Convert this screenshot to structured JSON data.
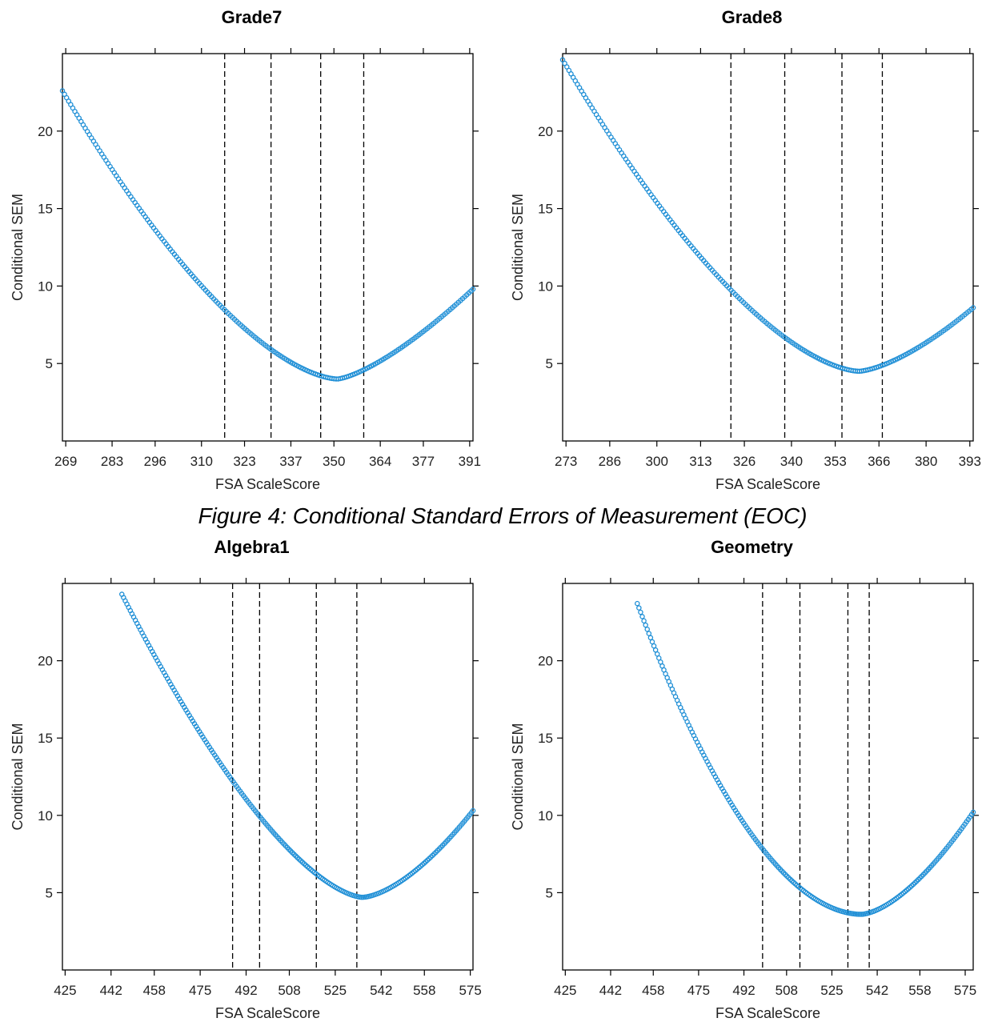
{
  "caption": "Figure 4: Conditional Standard Errors of Measurement (EOC)",
  "colors": {
    "points": "#1f8fd6",
    "cut_lines": "#000000"
  },
  "chart_data": [
    {
      "type": "scatter",
      "title": "Grade7",
      "xlabel": "FSA ScaleScore",
      "ylabel": "Conditional SEM",
      "xlim": [
        268,
        392
      ],
      "ylim": [
        0,
        25
      ],
      "x_ticks": [
        269,
        283,
        296,
        310,
        323,
        337,
        350,
        364,
        377,
        391
      ],
      "y_ticks": [
        5,
        10,
        15,
        20
      ],
      "cut_scores": [
        317,
        331,
        346,
        359
      ],
      "curve": {
        "xmin": 268,
        "xmax": 392,
        "min_x": 351,
        "min_y": 4.0,
        "left_end_y": 22.6,
        "right_end_y": 9.8,
        "shape_left": 1.6,
        "shape_right": 1.4
      }
    },
    {
      "type": "scatter",
      "title": "Grade8",
      "xlabel": "FSA ScaleScore",
      "ylabel": "Conditional SEM",
      "xlim": [
        272,
        394
      ],
      "ylim": [
        0,
        25
      ],
      "x_ticks": [
        273,
        286,
        300,
        313,
        326,
        340,
        353,
        366,
        380,
        393
      ],
      "y_ticks": [
        5,
        10,
        15,
        20
      ],
      "cut_scores": [
        322,
        338,
        355,
        367
      ],
      "curve": {
        "xmin": 272,
        "xmax": 394,
        "min_x": 360,
        "min_y": 4.5,
        "left_end_y": 24.6,
        "right_end_y": 8.6,
        "shape_left": 1.6,
        "shape_right": 1.5
      }
    },
    {
      "type": "scatter",
      "title": "Algebra1",
      "xlabel": "FSA ScaleScore",
      "ylabel": "Conditional SEM",
      "xlim": [
        424,
        576
      ],
      "ylim": [
        0,
        25
      ],
      "x_ticks": [
        425,
        442,
        458,
        475,
        492,
        508,
        525,
        542,
        558,
        575
      ],
      "y_ticks": [
        5,
        10,
        15,
        20
      ],
      "cut_scores": [
        487,
        497,
        518,
        533
      ],
      "curve": {
        "xmin": 446,
        "xmax": 576,
        "min_x": 535,
        "min_y": 4.7,
        "left_end_y": 24.3,
        "right_end_y": 10.3,
        "shape_left": 1.55,
        "shape_right": 1.6
      }
    },
    {
      "type": "scatter",
      "title": "Geometry",
      "xlabel": "FSA ScaleScore",
      "ylabel": "Conditional SEM",
      "xlim": [
        424,
        578
      ],
      "ylim": [
        0,
        25
      ],
      "x_ticks": [
        425,
        442,
        458,
        475,
        492,
        508,
        525,
        542,
        558,
        575
      ],
      "y_ticks": [
        5,
        10,
        15,
        20
      ],
      "cut_scores": [
        499,
        513,
        531,
        539
      ],
      "curve": {
        "xmin": 452,
        "xmax": 578,
        "min_x": 536,
        "min_y": 3.6,
        "left_end_y": 23.7,
        "right_end_y": 10.2,
        "shape_left": 1.9,
        "shape_right": 1.6
      }
    }
  ]
}
